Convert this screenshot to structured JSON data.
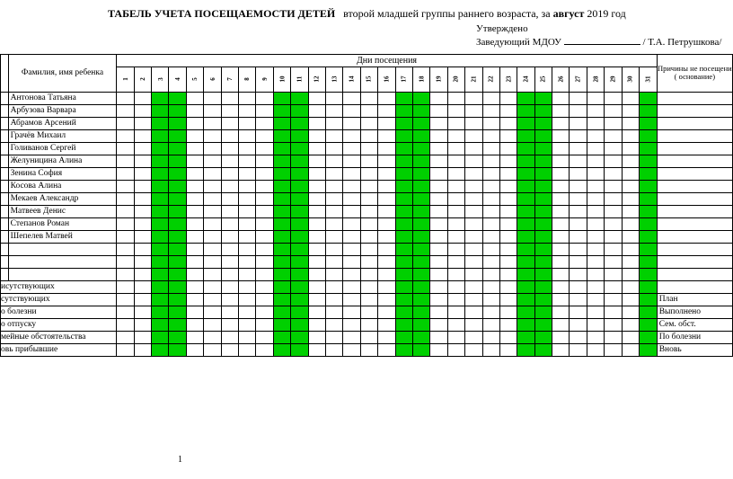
{
  "title_bold": "ТАБЕЛЬ УЧЕТА ПОСЕЩАЕМОСТИ ДЕТЕЙ",
  "title_rest_pre": "второй младшей  группы раннего возраста, за ",
  "title_month": "август",
  "title_rest_post": " 2019 год",
  "approval_line1": "Утверждено",
  "approval_line2_pre": "Заведующий МДОУ ",
  "approval_line2_post": " / Т.А. Петрушкова/",
  "col_name": "Фамилия, имя ребенка",
  "col_days": "Дни посещения",
  "col_reason_a": "Причины не посещени",
  "col_reason_b": "( основание)",
  "days": [
    "1",
    "2",
    "3",
    "4",
    "5",
    "6",
    "7",
    "8",
    "9",
    "10",
    "11",
    "12",
    "13",
    "14",
    "15",
    "16",
    "17",
    "18",
    "19",
    "20",
    "21",
    "22",
    "23",
    "24",
    "25",
    "26",
    "27",
    "28",
    "29",
    "30",
    "31"
  ],
  "children": [
    "Антонова Татьяна",
    "Арбузова Варвара",
    "Абрамов Арсений",
    "Грачёв Михаил",
    "Голиванов Сергей",
    "Желуницина Алина",
    "Зенина София",
    "Косова Алина",
    "Мекаев Александр",
    "Матвеев Денис",
    "Степанов Роман",
    "Шепелев Матвей"
  ],
  "green_days": [
    3,
    4,
    10,
    11,
    17,
    18,
    24,
    25,
    31
  ],
  "empty_rows": 3,
  "footer_rows": [
    {
      "label": "исутствующих",
      "reason": ""
    },
    {
      "label": "сутствующих",
      "reason": "План"
    },
    {
      "label": "о болезни",
      "reason": "Выполнено"
    },
    {
      "label": "о отпуску",
      "reason": "Сем. обст."
    },
    {
      "label": "мейные обстоятельства",
      "reason": "По болезни"
    },
    {
      "label": "овь прибывшие",
      "reason": "Вновь"
    }
  ],
  "page_num": "1",
  "colors": {
    "green": "#00d000",
    "border": "#000000",
    "bg": "#ffffff"
  }
}
